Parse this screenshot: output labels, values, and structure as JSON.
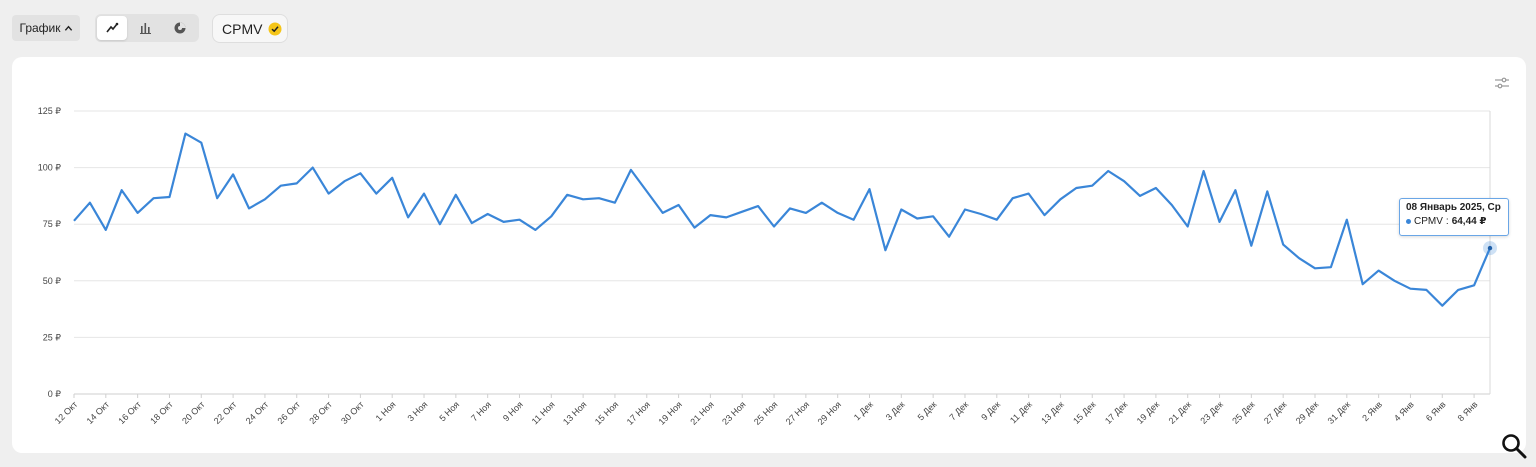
{
  "toolbar": {
    "chart_type_label": "График",
    "metric_label": "CPMV",
    "view_modes": [
      "line-chart-icon",
      "bar-chart-icon",
      "pie-chart-icon"
    ],
    "active_view": "line"
  },
  "tooltip": {
    "title": "08 Январь 2025, Ср",
    "series_name": "CPMV",
    "value_text": "64,44 ₽"
  },
  "colors": {
    "line": "#3a86d8",
    "grid": "#e6e6e6",
    "chip_check": "#f5c518"
  },
  "chart_data": {
    "type": "line",
    "ylim": [
      0,
      125
    ],
    "y_ticks": [
      "0 ₽",
      "25 ₽",
      "50 ₽",
      "75 ₽",
      "100 ₽",
      "125 ₽"
    ],
    "x_tick_labels": [
      "12 Окт",
      "14 Окт",
      "16 Окт",
      "18 Окт",
      "20 Окт",
      "22 Окт",
      "24 Окт",
      "26 Окт",
      "28 Окт",
      "30 Окт",
      "1 Ноя",
      "3 Ноя",
      "5 Ноя",
      "7 Ноя",
      "9 Ноя",
      "11 Ноя",
      "13 Ноя",
      "15 Ноя",
      "17 Ноя",
      "19 Ноя",
      "21 Ноя",
      "23 Ноя",
      "25 Ноя",
      "27 Ноя",
      "29 Ноя",
      "1 Дек",
      "3 Дек",
      "5 Дек",
      "7 Дек",
      "9 Дек",
      "11 Дек",
      "13 Дек",
      "15 Дек",
      "17 Дек",
      "19 Дек",
      "21 Дек",
      "23 Дек",
      "25 Дек",
      "27 Дек",
      "29 Дек",
      "31 Дек",
      "2 Янв",
      "4 Янв",
      "6 Янв",
      "8 Янв"
    ],
    "grid": true,
    "series": [
      {
        "values": [
          76.5,
          84.5,
          72.5,
          90,
          80,
          86.5,
          87,
          115,
          111,
          86.5,
          97,
          82,
          86,
          92,
          93,
          100,
          88.5,
          94,
          97.5,
          88.5,
          95.5,
          78,
          88.5,
          75,
          88,
          75.5,
          79.5,
          76,
          77,
          72.5,
          78.5,
          88,
          86,
          86.5,
          84.5,
          99,
          89.5,
          80,
          83.5,
          73.5,
          79,
          78,
          80.5,
          83,
          74,
          82,
          80,
          84.5,
          80,
          77,
          90.5,
          63.5,
          81.5,
          77.5,
          78.5,
          69.5,
          81.5,
          79.5,
          77,
          86.5,
          88.5,
          79,
          86,
          91,
          92,
          98.5,
          94,
          87.5,
          91,
          83.5,
          74,
          98.5,
          76,
          90,
          65.5,
          89.5,
          66,
          60,
          55.5,
          56,
          77,
          48.5,
          54.5,
          50,
          46.5,
          46,
          39,
          46,
          48,
          64.44
        ]
      }
    ],
    "highlight_index": 89
  }
}
